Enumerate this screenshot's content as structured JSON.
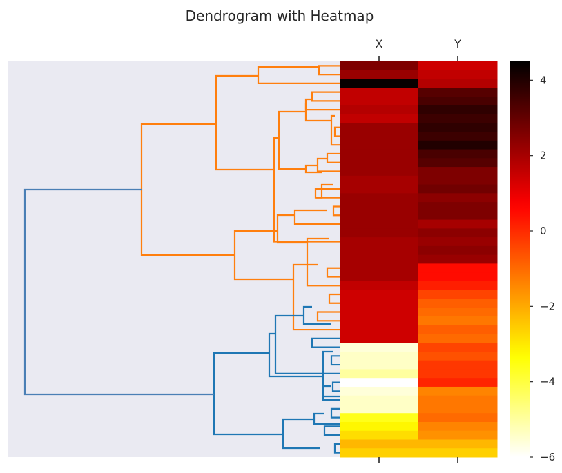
{
  "chart_data": {
    "type": "heatmap",
    "title": "Dendrogram with Heatmap",
    "columns": [
      "X",
      "Y"
    ],
    "rows": 45,
    "values": {
      "X": [
        2.6,
        2.2,
        4.4,
        1.6,
        1.6,
        1.8,
        1.6,
        2.2,
        2.2,
        2.2,
        2.2,
        2.2,
        2.2,
        2.0,
        2.0,
        2.2,
        2.2,
        2.2,
        2.2,
        2.2,
        2.0,
        2.0,
        2.0,
        2.0,
        2.0,
        1.6,
        1.4,
        1.4,
        1.4,
        1.4,
        1.4,
        1.4,
        -5.6,
        -5.4,
        -5.4,
        -5.0,
        -6.0,
        -5.6,
        -5.4,
        -5.4,
        -3.6,
        -3.2,
        -2.8,
        -2.2,
        -2.6
      ],
      "Y": [
        1.4,
        1.6,
        1.8,
        3.2,
        3.4,
        3.8,
        3.6,
        3.8,
        3.6,
        4.0,
        3.4,
        3.2,
        2.6,
        2.6,
        2.8,
        2.4,
        2.6,
        2.6,
        2.0,
        2.4,
        2.2,
        2.4,
        2.2,
        0.5,
        0.5,
        0.2,
        -0.4,
        -0.8,
        -1.0,
        -1.2,
        -0.8,
        -1.0,
        -0.4,
        -0.6,
        -0.2,
        -0.2,
        0.1,
        -1.4,
        -1.2,
        -1.2,
        -1.0,
        -1.4,
        -1.6,
        -2.2,
        -2.6
      ]
    },
    "colorbar": {
      "min": -6,
      "max": 4.5,
      "ticks": [
        4,
        2,
        0,
        -2,
        -4,
        -6
      ],
      "tick_labels": [
        "4",
        "2",
        "0",
        "−2",
        "−4",
        "−6"
      ],
      "colormap": "hot_r"
    },
    "dendrogram": {
      "orientation": "left",
      "colors": {
        "cluster_a": "#ff7f0e",
        "cluster_b": "#1f77b4",
        "link": "#4a7fb5"
      },
      "background": "#eaeaf2"
    }
  }
}
